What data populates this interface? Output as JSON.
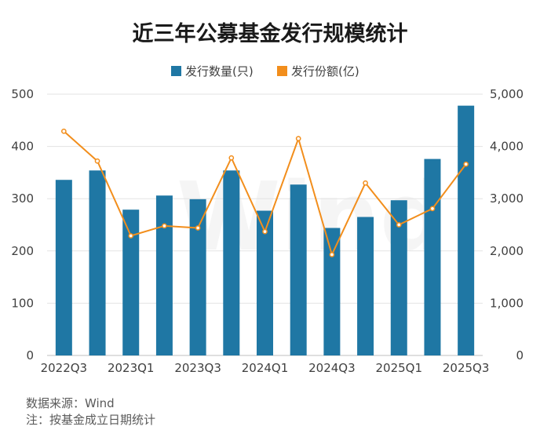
{
  "chart_data": {
    "type": "bar",
    "title": "近三年公募基金发行规模统计",
    "watermark": "Wind",
    "categories": [
      "2022Q3",
      "2022Q4",
      "2023Q1",
      "2023Q2",
      "2023Q3",
      "2023Q4",
      "2024Q1",
      "2024Q2",
      "2024Q3",
      "2024Q4",
      "2025Q1",
      "2025Q2",
      "2025Q3"
    ],
    "x_tick_labels": [
      "2022Q3",
      "",
      "2023Q1",
      "",
      "2023Q3",
      "",
      "2024Q1",
      "",
      "2024Q3",
      "",
      "2025Q1",
      "",
      "2025Q3"
    ],
    "series": [
      {
        "name": "发行数量(只)",
        "type": "bar",
        "axis": "left",
        "color": "#1f77a4",
        "values": [
          336,
          354,
          279,
          306,
          299,
          354,
          277,
          327,
          244,
          265,
          297,
          376,
          478
        ]
      },
      {
        "name": "发行份额(亿)",
        "type": "line",
        "axis": "right",
        "color": "#f28e1c",
        "values": [
          4290,
          3720,
          2290,
          2480,
          2440,
          3780,
          2370,
          4150,
          1930,
          3300,
          2500,
          2810,
          3660
        ]
      }
    ],
    "y_left": {
      "range": [
        0,
        500
      ],
      "ticks": [
        0,
        100,
        200,
        300,
        400,
        500
      ],
      "tick_labels": [
        "0",
        "100",
        "200",
        "300",
        "400",
        "500"
      ]
    },
    "y_right": {
      "range": [
        0,
        5000
      ],
      "ticks": [
        0,
        1000,
        2000,
        3000,
        4000,
        5000
      ],
      "tick_labels": [
        "0",
        "1,000",
        "2,000",
        "3,000",
        "4,000",
        "5,000"
      ]
    },
    "grid": "horizontal",
    "legend_position": "top-center"
  },
  "notes": {
    "source": "数据来源：Wind",
    "remark": "注：按基金成立日期统计"
  }
}
